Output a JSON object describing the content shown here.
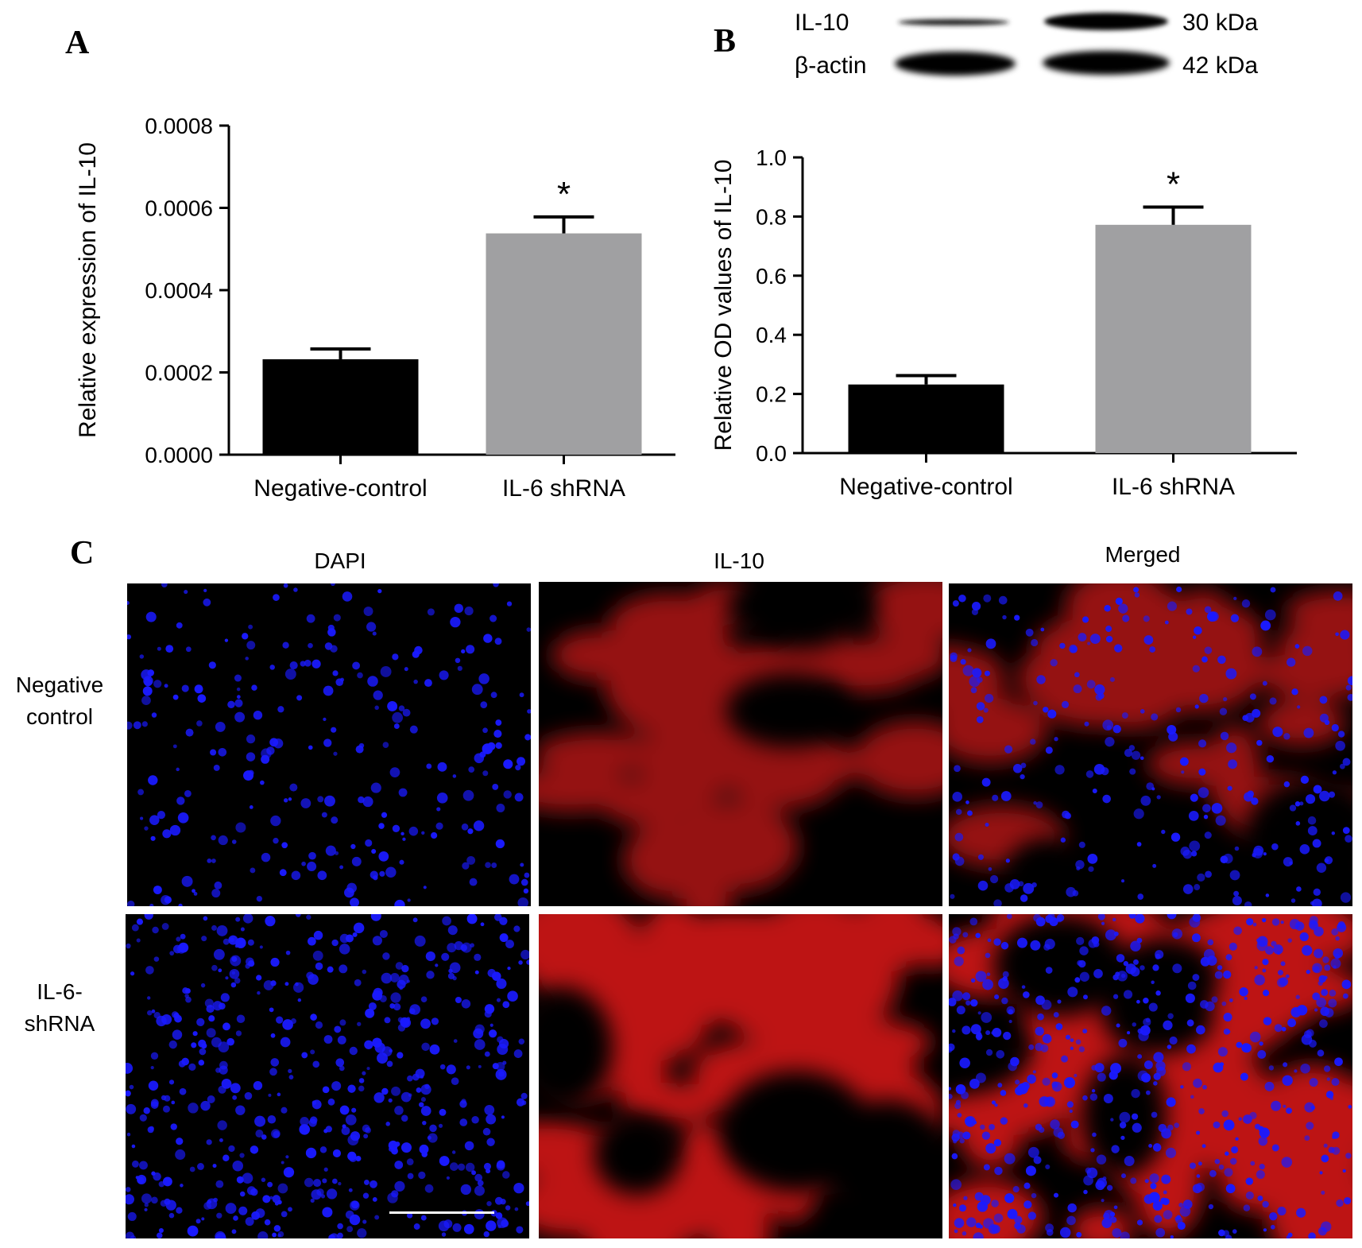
{
  "panels": {
    "a": "A",
    "b": "B",
    "c": "C"
  },
  "blot": {
    "bands": [
      {
        "name": "IL-10",
        "size": "30 kDa"
      },
      {
        "name": "β-actin",
        "size": "42 kDa"
      }
    ]
  },
  "chart_data": [
    {
      "type": "bar",
      "panel": "A",
      "ylabel": "Relative expression of IL-10",
      "categories": [
        "Negative-control",
        "IL-6 shRNA"
      ],
      "values": [
        0.000232,
        0.000538
      ],
      "errors": [
        2.5e-05,
        4e-05
      ],
      "significance": [
        "",
        "*"
      ],
      "bar_colors": [
        "#000000",
        "#a0a0a2"
      ],
      "ylim": [
        0,
        0.0008
      ],
      "yticks": [
        "0.0000",
        "0.0002",
        "0.0004",
        "0.0006",
        "0.0008"
      ],
      "grid": false
    },
    {
      "type": "bar",
      "panel": "B",
      "ylabel": "Relative OD values of IL-10",
      "categories": [
        "Negative-control",
        "IL-6 shRNA"
      ],
      "values": [
        0.232,
        0.772
      ],
      "errors": [
        0.03,
        0.06
      ],
      "significance": [
        "",
        "*"
      ],
      "bar_colors": [
        "#000000",
        "#a0a0a2"
      ],
      "ylim": [
        0,
        1.0
      ],
      "yticks": [
        "0.0",
        "0.2",
        "0.4",
        "0.6",
        "0.8",
        "1.0"
      ],
      "grid": false
    }
  ],
  "microscopy": {
    "columns": [
      "DAPI",
      "IL-10",
      "Merged"
    ],
    "rows": [
      {
        "label_line1": "Negative",
        "label_line2": "control"
      },
      {
        "label_line1": "IL-6-",
        "label_line2": "shRNA"
      }
    ],
    "channel_colors": {
      "dapi": "#1a1aff",
      "il10": "#e01010",
      "merged": "#c030c0"
    }
  }
}
